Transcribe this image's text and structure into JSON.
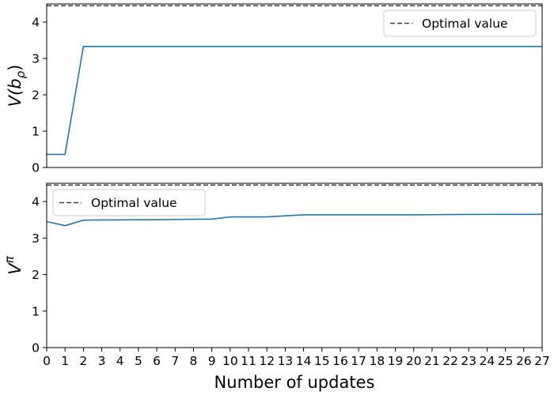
{
  "chart_data": [
    {
      "type": "line",
      "ylabel": "V(b_ρ)",
      "ylabel_main": "V(b",
      "ylabel_sub": "ρ",
      "ylabel_close": ")",
      "ylim": [
        0,
        4.5
      ],
      "xlim": [
        0,
        27
      ],
      "yticks": [
        "0",
        "1",
        "2",
        "3",
        "4"
      ],
      "show_xticks": false,
      "legend_position": "top-right",
      "reference_line": {
        "name": "Optimal value",
        "value": 4.45,
        "color": "#404040",
        "style": "dashed"
      },
      "series": [
        {
          "color": "#1f77b4",
          "x": [
            0,
            1,
            2,
            27
          ],
          "y": [
            0.36,
            0.36,
            3.33,
            3.33
          ]
        }
      ]
    },
    {
      "type": "line",
      "ylabel": "V^π",
      "ylabel_main": "V",
      "ylabel_sup": "π",
      "xlabel": "Number of updates",
      "ylim": [
        0,
        4.5
      ],
      "xlim": [
        0,
        27
      ],
      "yticks": [
        "0",
        "1",
        "2",
        "3",
        "4"
      ],
      "xticks": [
        "0",
        "1",
        "2",
        "3",
        "4",
        "5",
        "6",
        "7",
        "8",
        "9",
        "10",
        "11",
        "12",
        "13",
        "14",
        "15",
        "16",
        "17",
        "18",
        "19",
        "20",
        "21",
        "22",
        "23",
        "24",
        "25",
        "26",
        "27"
      ],
      "show_xticks": true,
      "legend_position": "top-left",
      "reference_line": {
        "name": "Optimal value",
        "value": 4.45,
        "color": "#404040",
        "style": "dashed"
      },
      "series": [
        {
          "color": "#1f77b4",
          "x": [
            0,
            1,
            2,
            3,
            4,
            5,
            6,
            7,
            8,
            9,
            10,
            11,
            12,
            13,
            14,
            15,
            16,
            17,
            18,
            19,
            20,
            21,
            22,
            23,
            24,
            25,
            26,
            27
          ],
          "y": [
            3.45,
            3.34,
            3.49,
            3.495,
            3.497,
            3.5,
            3.5,
            3.51,
            3.515,
            3.52,
            3.58,
            3.58,
            3.58,
            3.61,
            3.635,
            3.635,
            3.635,
            3.635,
            3.635,
            3.635,
            3.635,
            3.64,
            3.643,
            3.646,
            3.648,
            3.65,
            3.65,
            3.65
          ]
        }
      ]
    }
  ]
}
